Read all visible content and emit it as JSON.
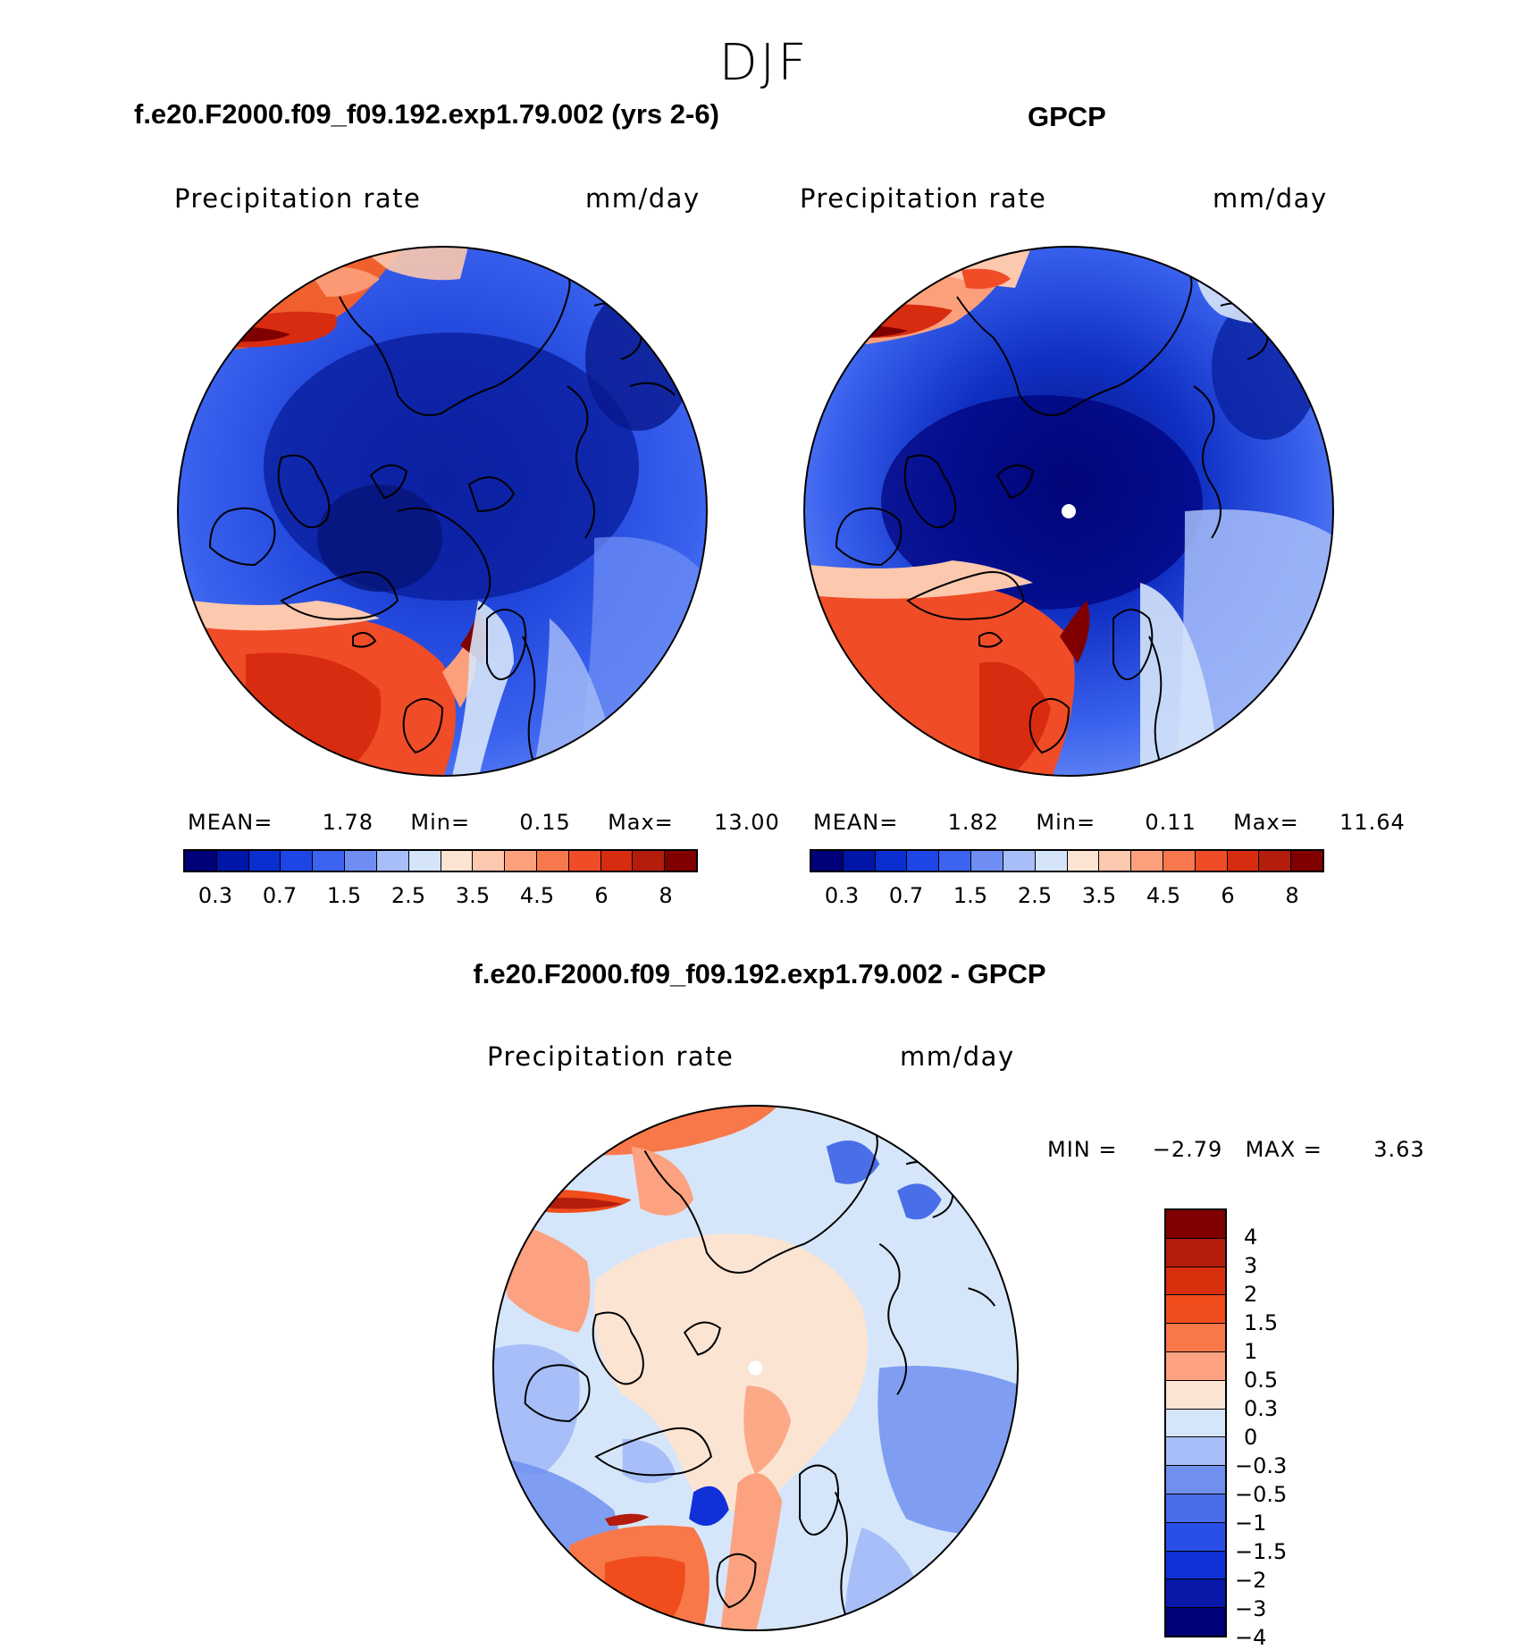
{
  "figure": {
    "season": "DJF"
  },
  "panels": {
    "model": {
      "title": "f.e20.F2000.f09_f09.192.exp1.79.002 (yrs 2-6)",
      "variable": "Precipitation rate",
      "units": "mm/day",
      "stats": {
        "mean_label": "MEAN=",
        "mean": "1.78",
        "min_label": "Min=",
        "min": "0.15",
        "max_label": "Max=",
        "max": "13.00"
      }
    },
    "obs": {
      "title": "GPCP",
      "variable": "Precipitation rate",
      "units": "mm/day",
      "stats": {
        "mean_label": "MEAN=",
        "mean": "1.82",
        "min_label": "Min=",
        "min": "0.11",
        "max_label": "Max=",
        "max": "11.64"
      }
    },
    "diff": {
      "title": "f.e20.F2000.f09_f09.192.exp1.79.002 - GPCP",
      "variable": "Precipitation rate",
      "units": "mm/day",
      "stats": {
        "min_label": "MIN =",
        "min": "−2.79",
        "max_label": "MAX =",
        "max": "3.63"
      }
    }
  },
  "colorbars": {
    "abs": {
      "colors": [
        "#000078",
        "#0016a8",
        "#0a2ed0",
        "#1e46e6",
        "#3c64f0",
        "#6e8ef4",
        "#a8bef8",
        "#d6e4fa",
        "#fbe4d2",
        "#fcc8ae",
        "#fca07c",
        "#f8784e",
        "#f04c28",
        "#d82c10",
        "#b41c0c",
        "#800000"
      ],
      "labels": [
        "0.3",
        "0.7",
        "1.5",
        "2.5",
        "3.5",
        "4.5",
        "6",
        "8"
      ]
    },
    "diff": {
      "colors": [
        "#800000",
        "#b41c0c",
        "#d8300c",
        "#f04c1c",
        "#f8784a",
        "#fca280",
        "#fce4d2",
        "#d6e6fa",
        "#a8bef8",
        "#7090f0",
        "#4a6ee8",
        "#2a4ee8",
        "#1030d8",
        "#0818a8",
        "#000078"
      ],
      "labels": [
        "4",
        "3",
        "2",
        "1.5",
        "1",
        "0.5",
        "0.3",
        "0",
        "−0.3",
        "−0.5",
        "−1",
        "−1.5",
        "−2",
        "−3",
        "−4"
      ]
    }
  }
}
